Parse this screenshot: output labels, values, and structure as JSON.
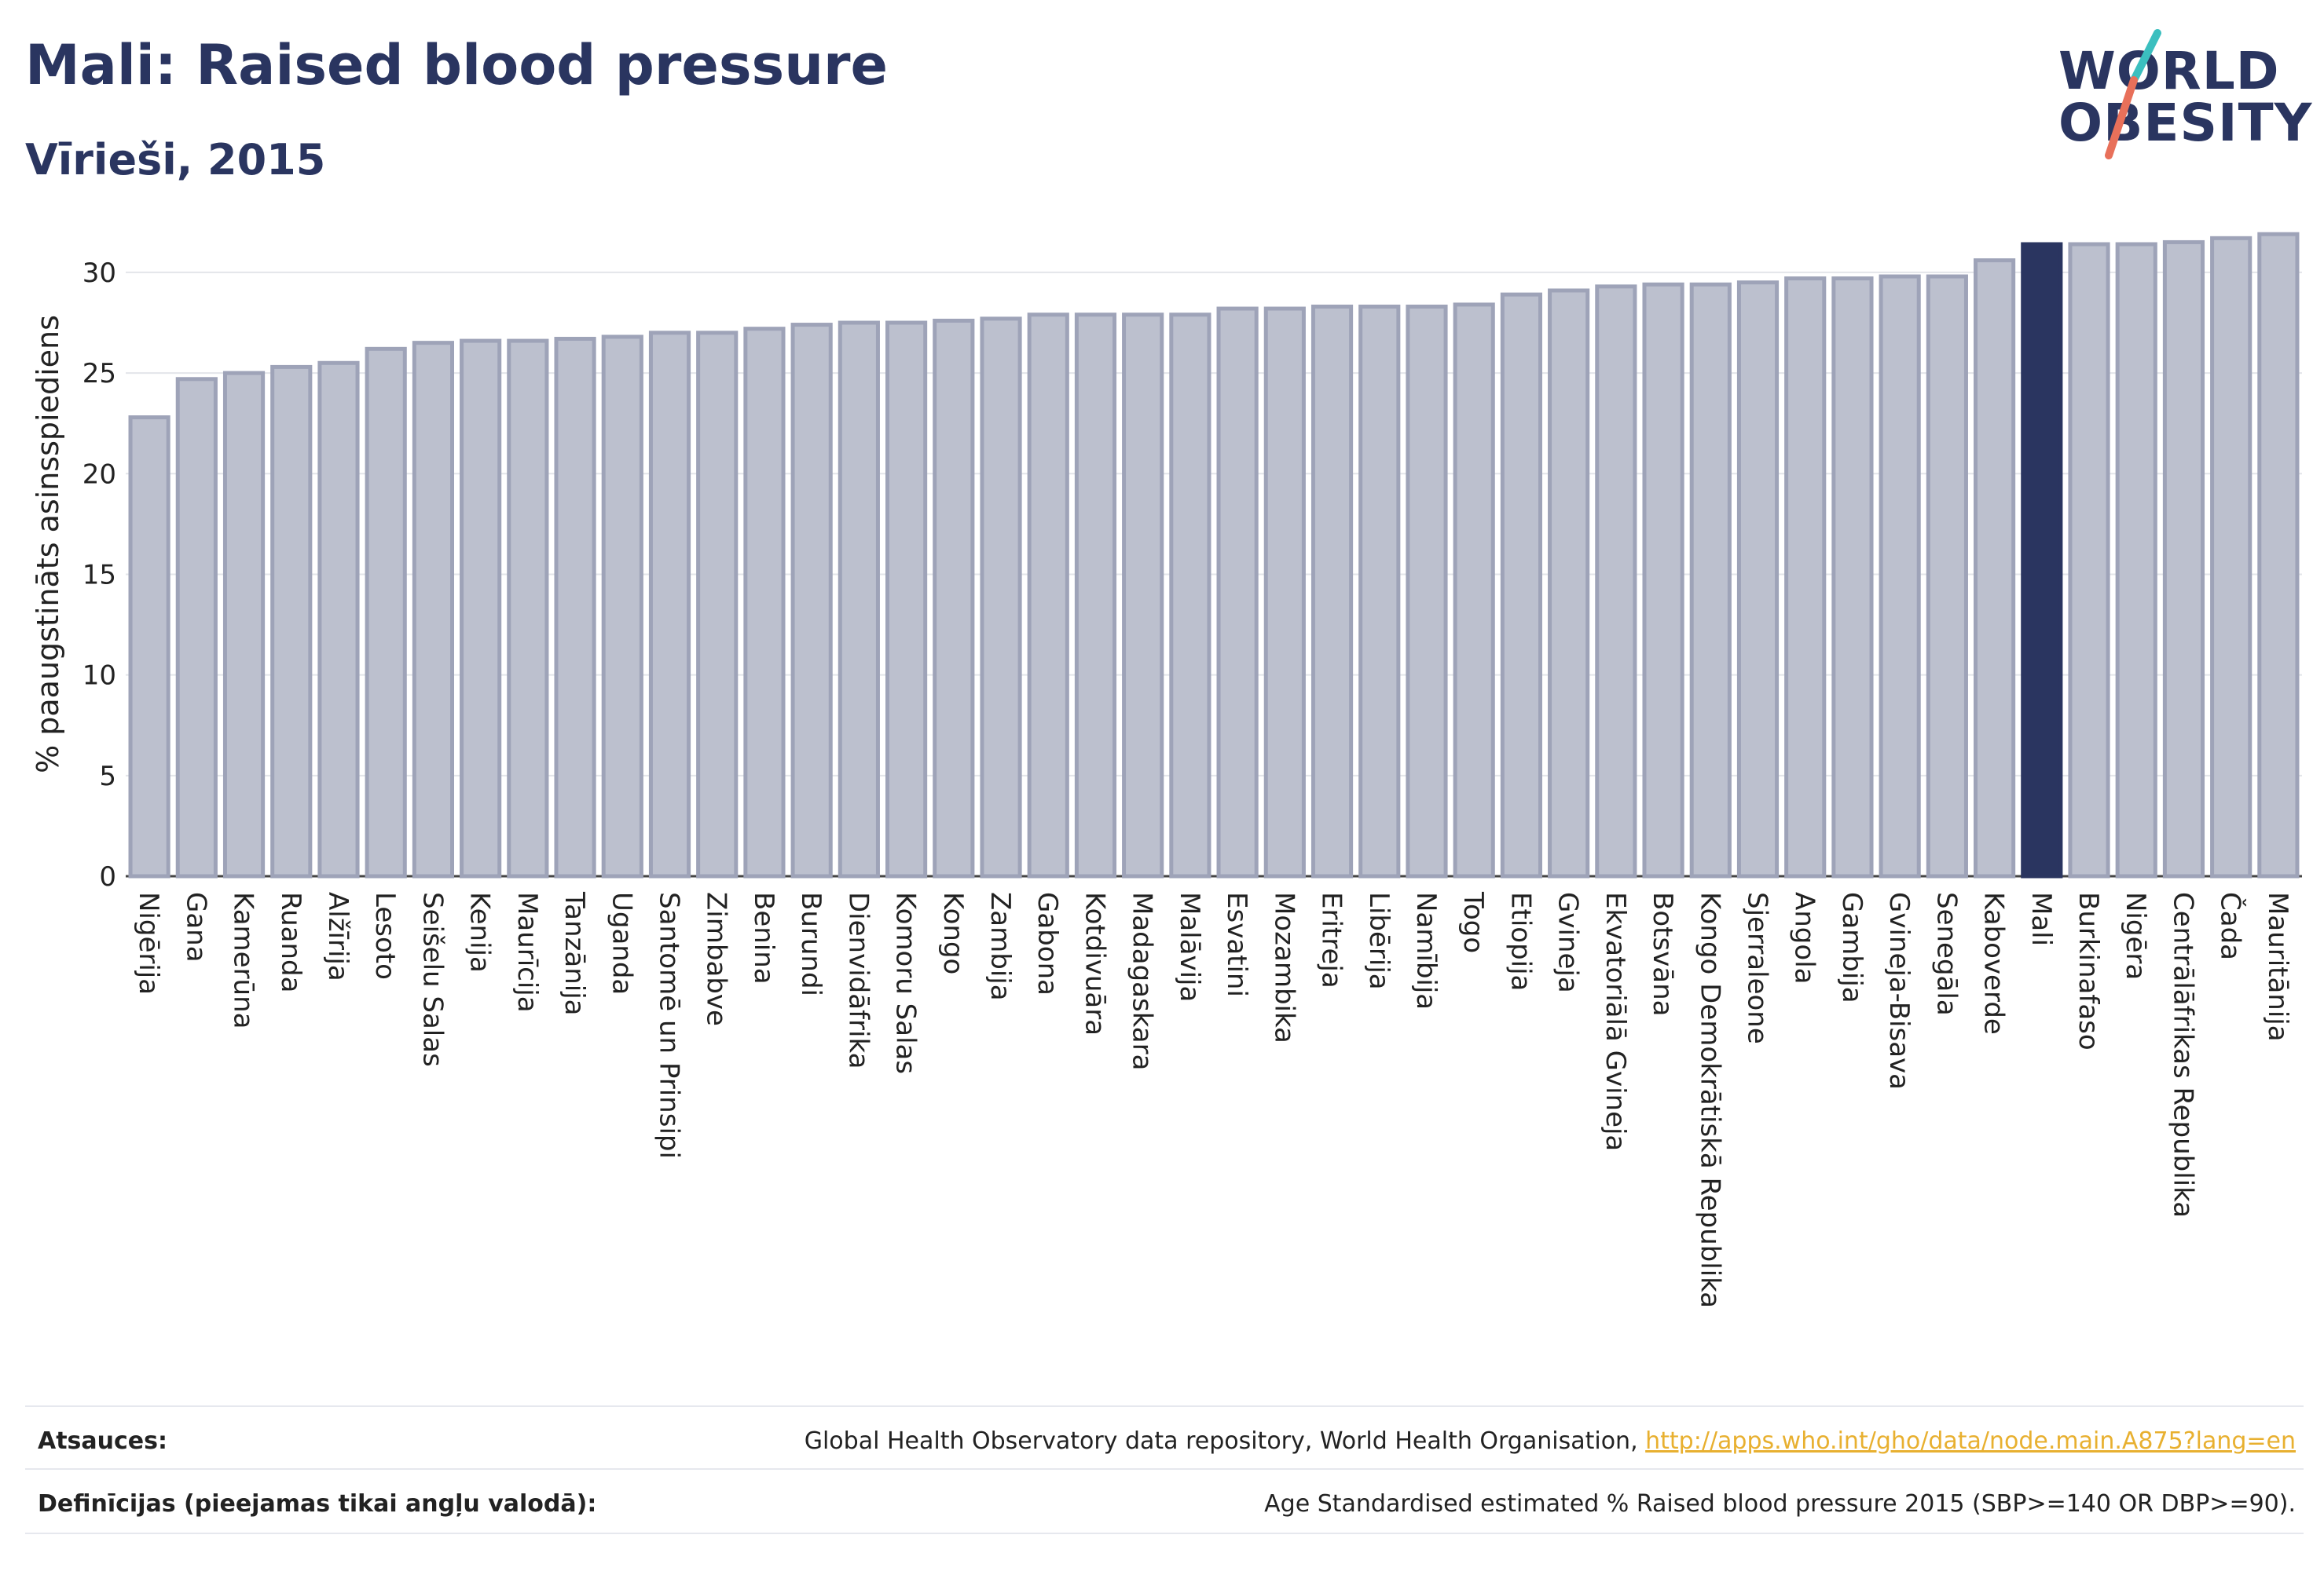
{
  "header": {
    "title": "Mali: Raised blood pressure",
    "subtitle": "Vīrieši, 2015"
  },
  "logo": {
    "line1": "WORLD",
    "line2": "OBESITY"
  },
  "colors": {
    "highlight": "#2a3560",
    "bar_fill": "#bcc0ce",
    "bar_stroke": "#9ea3b8",
    "title": "#2a3560",
    "link": "#e8b030",
    "logo_teal": "#3bbfbf",
    "logo_coral": "#e8705a"
  },
  "chart_data": {
    "type": "bar",
    "title": "Mali: Raised blood pressure",
    "subtitle": "Vīrieši, 2015",
    "xlabel": "",
    "ylabel": "% paaugstināts asinsspiediens",
    "ylim": [
      0,
      33
    ],
    "yticks": [
      0,
      5,
      10,
      15,
      20,
      25,
      30
    ],
    "grid": true,
    "highlight": "Mali",
    "categories": [
      "Nigērija",
      "Gana",
      "Kamerūna",
      "Ruanda",
      "Alžīrija",
      "Lesoto",
      "Seišelu Salas",
      "Kenija",
      "Maurīcija",
      "Tanzānija",
      "Uganda",
      "Santomē un Prinsipi",
      "Zimbabve",
      "Benina",
      "Burundi",
      "Dienvidāfrika",
      "Komoru Salas",
      "Kongo",
      "Zambija",
      "Gabona",
      "Kotdivuāra",
      "Madagaskara",
      "Malāvija",
      "Esvatini",
      "Mozambika",
      "Eritreja",
      "Libērija",
      "Namībija",
      "Togo",
      "Etiopija",
      "Gvineja",
      "Ekvatoriālā Gvineja",
      "Botsvāna",
      "Kongo Demokrātiskā Republika",
      "Sjerraleone",
      "Angola",
      "Gambija",
      "Gvineja-Bisava",
      "Senegāla",
      "Kaboverde",
      "Mali",
      "Burkinafaso",
      "Nigēra",
      "Centrālāfrikas Republika",
      "Čada",
      "Mauritānija"
    ],
    "values": [
      22.8,
      24.7,
      25.0,
      25.3,
      25.5,
      26.2,
      26.5,
      26.6,
      26.6,
      26.7,
      26.8,
      27.0,
      27.0,
      27.2,
      27.4,
      27.5,
      27.5,
      27.6,
      27.7,
      27.9,
      27.9,
      27.9,
      27.9,
      28.2,
      28.2,
      28.3,
      28.3,
      28.3,
      28.4,
      28.9,
      29.1,
      29.3,
      29.4,
      29.4,
      29.5,
      29.7,
      29.7,
      29.8,
      29.8,
      30.6,
      31.4,
      31.4,
      31.4,
      31.5,
      31.7,
      31.9
    ]
  },
  "footer": {
    "sources_label": "Atsauces:",
    "sources_text": "Global Health Observatory data repository, World Health Organisation, ",
    "sources_link": "http://apps.who.int/gho/data/node.main.A875?lang=en",
    "definitions_label": "Definīcijas (pieejamas tikai angļu valodā):",
    "definitions_text": "Age Standardised estimated % Raised blood pressure 2015 (SBP>=140 OR DBP>=90)."
  }
}
